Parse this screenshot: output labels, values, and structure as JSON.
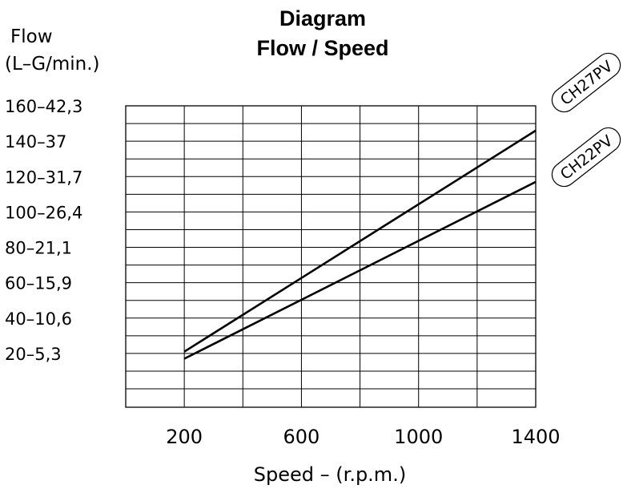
{
  "chart_data": {
    "type": "line",
    "title": "Diagram",
    "subtitle": "Flow / Speed",
    "ylabel_line1": "Flow",
    "ylabel_line2": "(L–G/min.)",
    "xlabel": "Speed  –  (r.p.m.)",
    "xlim": [
      0,
      1400
    ],
    "ylim": [
      0,
      160
    ],
    "x_ticks": [
      {
        "value": 200,
        "label": "200"
      },
      {
        "value": 600,
        "label": "600"
      },
      {
        "value": 1000,
        "label": "1000"
      },
      {
        "value": 1400,
        "label": "1400"
      }
    ],
    "y_ticks": [
      {
        "value": 160,
        "label": "160–42,3"
      },
      {
        "value": 140,
        "label": "140–37"
      },
      {
        "value": 120,
        "label": "120–31,7"
      },
      {
        "value": 100,
        "label": "100–26,4"
      },
      {
        "value": 80,
        "label": "80–21,1"
      },
      {
        "value": 60,
        "label": "60–15,9"
      },
      {
        "value": 40,
        "label": "40–10,6"
      },
      {
        "value": 20,
        "label": "20–5,3"
      }
    ],
    "series": [
      {
        "name": "CH27PV",
        "x": [
          200,
          1400
        ],
        "y": [
          21,
          146
        ]
      },
      {
        "name": "CH22PV",
        "x": [
          200,
          1400
        ],
        "y": [
          17,
          117
        ]
      }
    ],
    "grid": true,
    "legend": "right"
  },
  "colors": {
    "line": "#000000",
    "background": "#ffffff"
  }
}
